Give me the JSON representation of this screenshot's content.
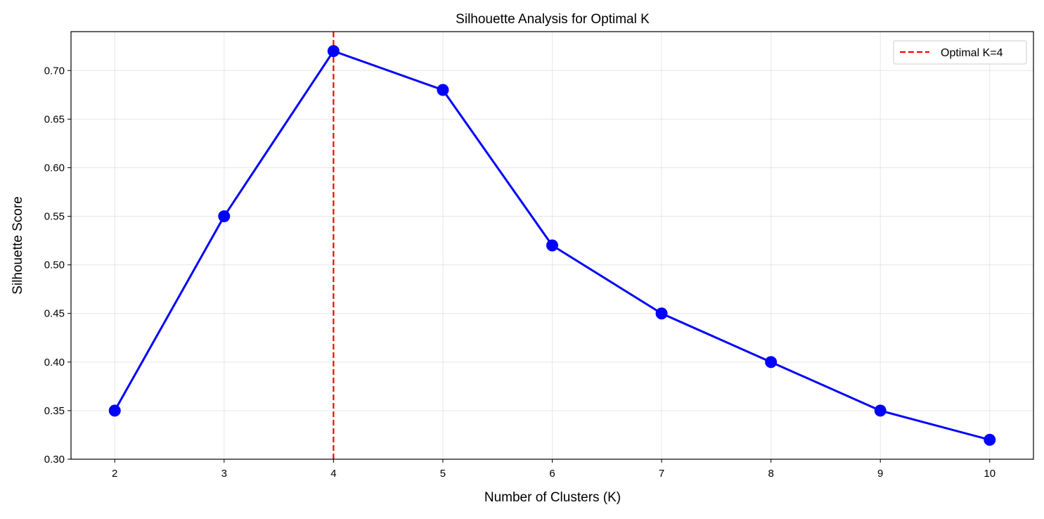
{
  "chart_data": {
    "type": "line",
    "title": "Silhouette Analysis for Optimal K",
    "xlabel": "Number of Clusters (K)",
    "ylabel": "Silhouette Score",
    "x": [
      2,
      3,
      4,
      5,
      6,
      7,
      8,
      9,
      10
    ],
    "series": [
      {
        "name": "Silhouette Score",
        "values": [
          0.35,
          0.55,
          0.72,
          0.68,
          0.52,
          0.45,
          0.4,
          0.35,
          0.32
        ],
        "color": "#0000ff",
        "marker": "circle"
      }
    ],
    "reference_lines": [
      {
        "orientation": "vertical",
        "x": 4,
        "label": "Optimal K=4",
        "color": "#ff0000",
        "style": "dashed"
      }
    ],
    "xticks": [
      "2",
      "3",
      "4",
      "5",
      "6",
      "7",
      "8",
      "9",
      "10"
    ],
    "yticks": [
      "0.30",
      "0.35",
      "0.40",
      "0.45",
      "0.50",
      "0.55",
      "0.60",
      "0.65",
      "0.70"
    ],
    "xlim": [
      1.6,
      10.4
    ],
    "ylim": [
      0.3,
      0.74
    ],
    "grid": true,
    "legend": {
      "position": "upper right",
      "entries": [
        "Optimal K=4"
      ]
    }
  }
}
